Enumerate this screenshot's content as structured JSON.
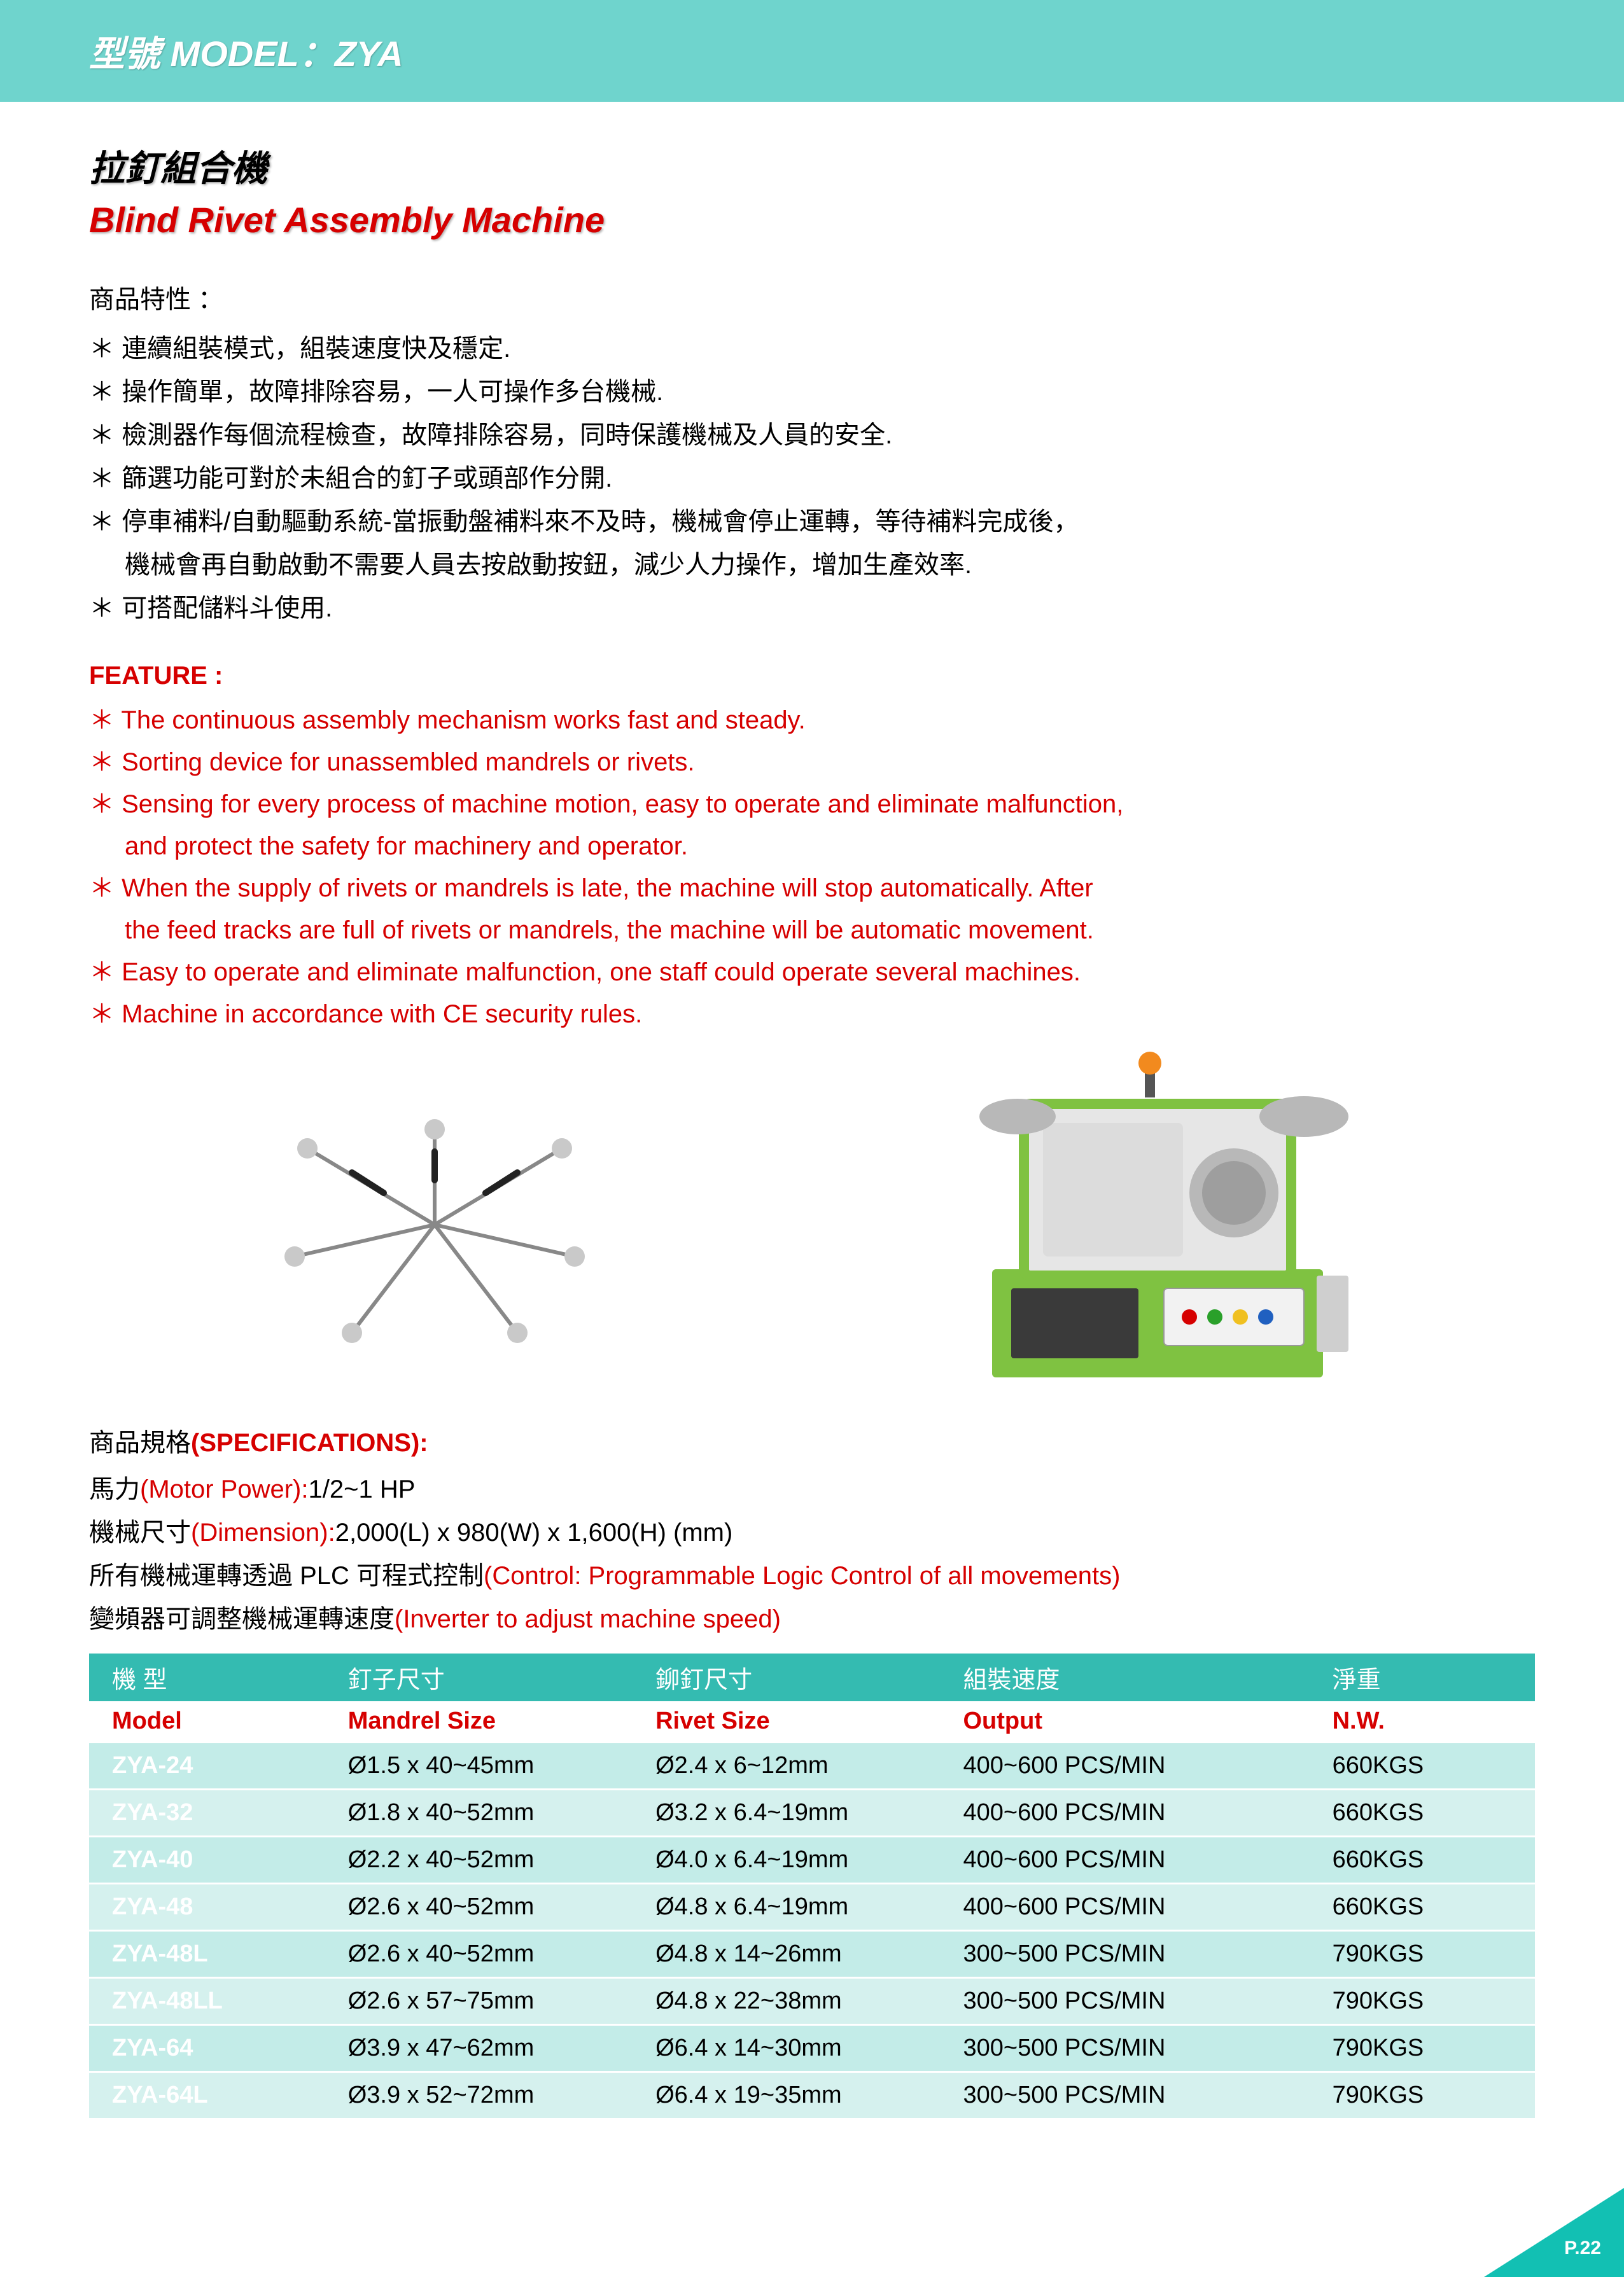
{
  "colors": {
    "header_band": "#6fd4cd",
    "header_text": "#ffffff",
    "title_cn": "#000000",
    "title_en": "#d60000",
    "feature_en": "#d60000",
    "body_text": "#000000",
    "table_header_cn_bg": "#34bbb1",
    "table_header_cn_text": "#ffffff",
    "table_header_en_text": "#d60000",
    "table_row_odd": "#c3ece8",
    "table_row_even": "#d5f1ee",
    "table_row_separator": "#ffffff",
    "model_cell_text": "#ffffff",
    "corner": "#12c0b3",
    "machine_green": "#7fc241",
    "machine_grey": "#b8b8b8",
    "machine_panel": "#e6e6e6",
    "beacon_orange": "#f28a1e"
  },
  "fonts": {
    "header_title_pt": 56,
    "title_pt": 56,
    "body_pt": 40,
    "table_pt": 38,
    "page_num_pt": 30
  },
  "header": {
    "title": "型號 MODEL：ZYA"
  },
  "titles": {
    "cn": "拉釘組合機",
    "en": "Blind Rivet Assembly Machine"
  },
  "features_cn": {
    "label": "商品特性 ：",
    "items": [
      "連續組裝模式，組裝速度快及穩定.",
      "操作簡單，故障排除容易，一人可操作多台機械.",
      "檢測器作每個流程檢查，故障排除容易，同時保護機械及人員的安全.",
      "篩選功能可對於未組合的釘子或頭部作分開.",
      "停車補料/自動驅動系統-當振動盤補料來不及時，機械會停止運轉，等待補料完成後，",
      "機械會再自動啟動不需要人員去按啟動按鈕，減少人力操作，增加生產效率.",
      "可搭配儲料斗使用."
    ],
    "cont_flags": [
      false,
      false,
      false,
      false,
      false,
      true,
      false
    ]
  },
  "features_en": {
    "label": "FEATURE :",
    "items": [
      "The continuous assembly mechanism works fast and steady.",
      "Sorting device for unassembled mandrels or rivets.",
      "Sensing for every process of machine motion, easy to operate and eliminate malfunction,",
      "and protect the safety for machinery and operator.",
      "When the supply of rivets or mandrels is late, the machine will stop automatically. After",
      "the feed tracks are full of rivets or mandrels, the machine will be automatic movement.",
      "Easy to operate and eliminate malfunction, one staff could operate several machines.",
      "Machine in accordance with CE security rules."
    ],
    "cont_flags": [
      false,
      false,
      false,
      true,
      false,
      true,
      false,
      false
    ]
  },
  "specs": {
    "heading_cn": "商品規格",
    "heading_en": "(SPECIFICATIONS):",
    "lines": [
      {
        "cn": "馬力",
        "en": "(Motor Power):",
        "val": "1/2~1 HP"
      },
      {
        "cn": "機械尺寸",
        "en": "(Dimension):",
        "val": "2,000(L) x 980(W) x 1,600(H) (mm)"
      },
      {
        "cn": "所有機械運轉透過 PLC 可程式控制",
        "en": "(Control: Programmable Logic Control of all movements)",
        "val": ""
      },
      {
        "cn": "變頻器可調整機械運轉速度",
        "en": "(Inverter to adjust machine speed)",
        "val": ""
      }
    ]
  },
  "table": {
    "headers_cn": [
      "機 型",
      "釘子尺寸",
      "鉚釘尺寸",
      "組裝速度",
      "淨重"
    ],
    "headers_en": [
      "Model",
      "Mandrel Size",
      "Rivet Size",
      "Output",
      "N.W."
    ],
    "col_widths_pct": [
      16,
      20,
      20,
      24,
      14
    ],
    "rows": [
      [
        "ZYA-24",
        "Ø1.5 x 40~45mm",
        "Ø2.4 x 6~12mm",
        "400~600 PCS/MIN",
        "660KGS"
      ],
      [
        "ZYA-32",
        "Ø1.8 x 40~52mm",
        "Ø3.2 x 6.4~19mm",
        "400~600 PCS/MIN",
        "660KGS"
      ],
      [
        "ZYA-40",
        "Ø2.2 x 40~52mm",
        "Ø4.0 x 6.4~19mm",
        "400~600 PCS/MIN",
        "660KGS"
      ],
      [
        "ZYA-48",
        "Ø2.6 x 40~52mm",
        "Ø4.8 x 6.4~19mm",
        "400~600 PCS/MIN",
        "660KGS"
      ],
      [
        "ZYA-48L",
        "Ø2.6 x 40~52mm",
        "Ø4.8 x 14~26mm",
        "300~500 PCS/MIN",
        "790KGS"
      ],
      [
        "ZYA-48LL",
        "Ø2.6 x 57~75mm",
        "Ø4.8 x 22~38mm",
        "300~500 PCS/MIN",
        "790KGS"
      ],
      [
        "ZYA-64",
        "Ø3.9 x 47~62mm",
        "Ø6.4 x 14~30mm",
        "300~500 PCS/MIN",
        "790KGS"
      ],
      [
        "ZYA-64L",
        "Ø3.9 x 52~72mm",
        "Ø6.4 x 19~35mm",
        "300~500 PCS/MIN",
        "790KGS"
      ]
    ]
  },
  "page_number": "P.22"
}
